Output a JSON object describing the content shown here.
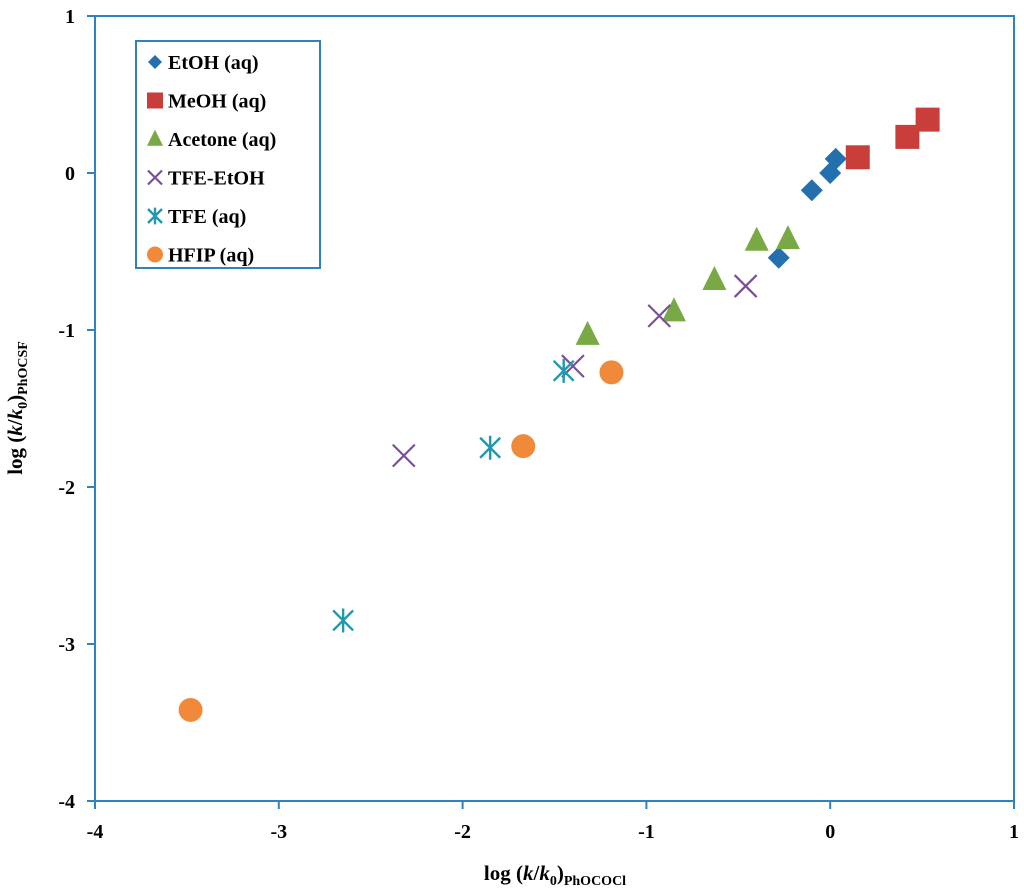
{
  "chart_data": {
    "type": "scatter",
    "title": "",
    "xlabel": {
      "prefix": "log (",
      "k": "k",
      "slash": "/",
      "k0": "k",
      "zero": "0",
      "close": ")",
      "sub": "PhOCOCl"
    },
    "ylabel": {
      "prefix": "log (",
      "k": "k",
      "slash": "/",
      "k0": "k",
      "zero": "0",
      "close": ")",
      "sub": "PhOCSF"
    },
    "xlim": [
      -4,
      1
    ],
    "ylim": [
      -4,
      1
    ],
    "xticks": [
      -4,
      -3,
      -2,
      -1,
      0,
      1
    ],
    "yticks": [
      -4,
      -3,
      -2,
      -1,
      0,
      1
    ],
    "xtick_labels": [
      "-4",
      "-3",
      "-2",
      "-1",
      "0",
      "1"
    ],
    "ytick_labels": [
      "-4",
      "-3",
      "-2",
      "-1",
      "0",
      "1"
    ],
    "grid": false,
    "legend_position": "top-left",
    "series": [
      {
        "name": "EtOH (aq)",
        "marker": "diamond",
        "color": "#2470ae",
        "x": [
          0.03,
          0.0,
          -0.1,
          -0.28
        ],
        "y": [
          0.09,
          0.0,
          -0.11,
          -0.54
        ]
      },
      {
        "name": "MeOH (aq)",
        "marker": "square",
        "color": "#c93d3b",
        "x": [
          0.15,
          0.42,
          0.53
        ],
        "y": [
          0.1,
          0.23,
          0.34
        ]
      },
      {
        "name": "Acetone (aq)",
        "marker": "triangle",
        "color": "#79a944",
        "x": [
          -0.4,
          -0.23,
          -0.63,
          -0.85,
          -1.32
        ],
        "y": [
          -0.43,
          -0.42,
          -0.68,
          -0.88,
          -1.03
        ]
      },
      {
        "name": "TFE-EtOH",
        "marker": "x",
        "color": "#7b4f97",
        "x": [
          -0.46,
          -0.93,
          -1.4,
          -2.32
        ],
        "y": [
          -0.72,
          -0.91,
          -1.23,
          -1.8
        ]
      },
      {
        "name": "TFE (aq)",
        "marker": "asterisk",
        "color": "#2197b0",
        "x": [
          -1.45,
          -1.85,
          -2.65
        ],
        "y": [
          -1.26,
          -1.75,
          -2.85
        ]
      },
      {
        "name": "HFIP (aq)",
        "marker": "circle",
        "color": "#f08a3a",
        "x": [
          -1.19,
          -1.67,
          -3.48
        ],
        "y": [
          -1.27,
          -1.74,
          -3.42
        ]
      }
    ]
  }
}
